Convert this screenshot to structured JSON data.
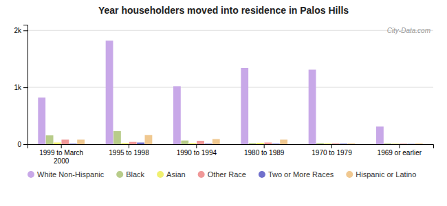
{
  "chart_data": {
    "type": "bar",
    "title": "Year householders moved into residence in Palos Hills",
    "categories": [
      "1999 to March\n2000",
      "1995 to 1998",
      "1990 to 1994",
      "1980 to 1989",
      "1970 to 1979",
      "1969 or earlier"
    ],
    "series": [
      {
        "name": "White Non-Hispanic",
        "color": "#c8a8e8",
        "values": [
          820,
          1820,
          1020,
          1340,
          1310,
          310
        ]
      },
      {
        "name": "Black",
        "color": "#b8cc8a",
        "values": [
          155,
          230,
          65,
          20,
          20,
          15
        ]
      },
      {
        "name": "Asian",
        "color": "#f0f070",
        "values": [
          30,
          20,
          20,
          25,
          15,
          10
        ]
      },
      {
        "name": "Other Race",
        "color": "#f09898",
        "values": [
          80,
          40,
          60,
          30,
          15,
          10
        ]
      },
      {
        "name": "Two or More Races",
        "color": "#7070cc",
        "values": [
          10,
          30,
          10,
          10,
          10,
          5
        ]
      },
      {
        "name": "Hispanic or Latino",
        "color": "#f0c890",
        "values": [
          80,
          160,
          90,
          80,
          15,
          15
        ]
      }
    ],
    "ylim": [
      0,
      2100
    ],
    "yticks": [
      0,
      {
        "value": 1000,
        "label": "1k"
      },
      {
        "value": 2000,
        "label": "2k"
      }
    ],
    "grid": true,
    "legend": "bottom",
    "annotations": [
      "City-Data.com"
    ]
  }
}
